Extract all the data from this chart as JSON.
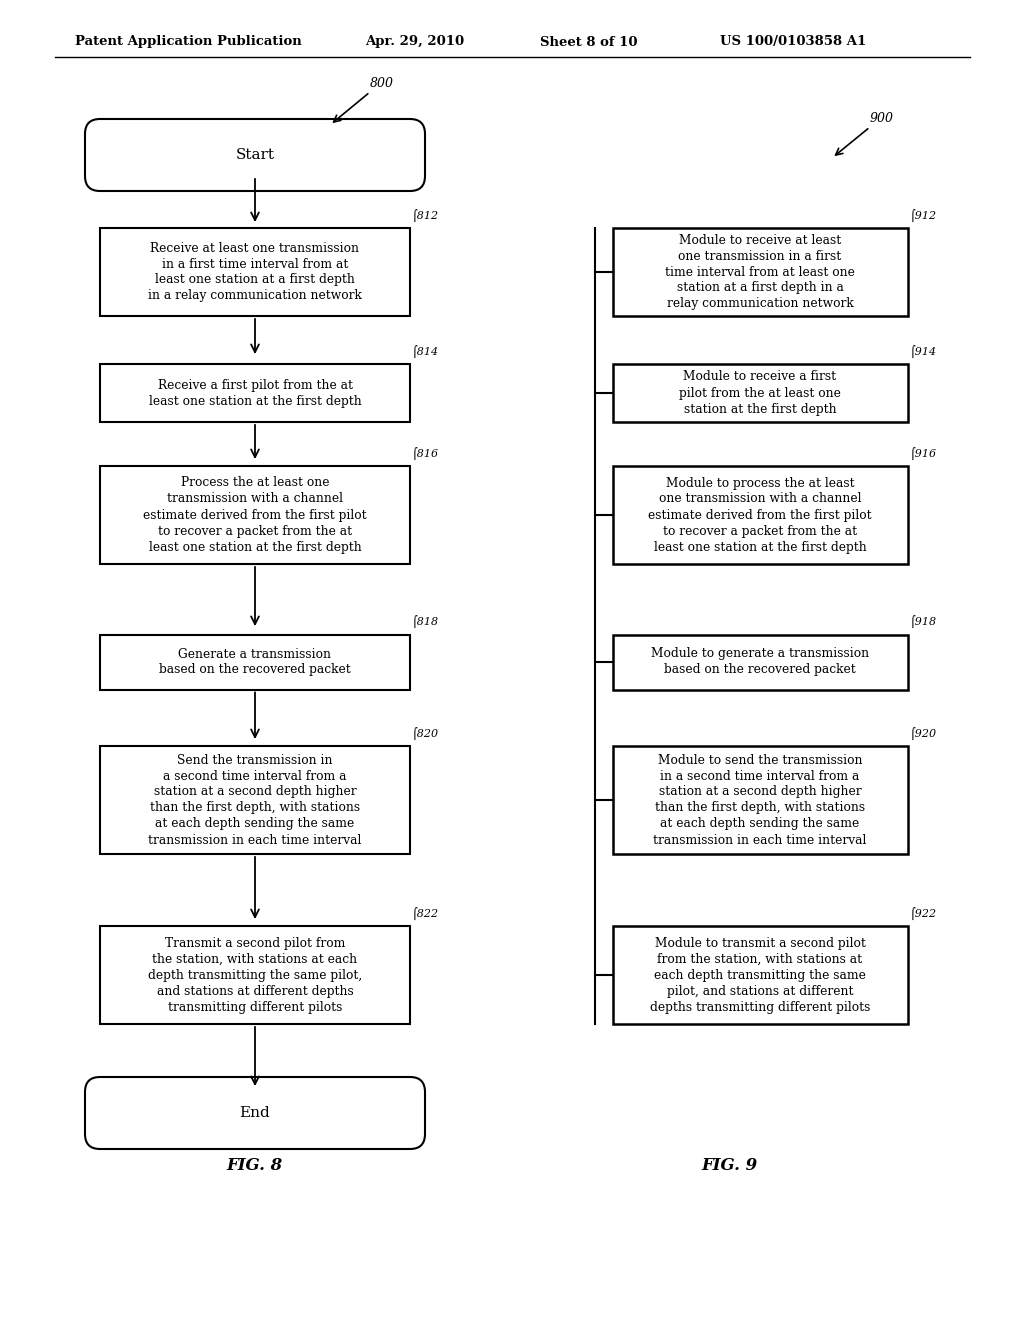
{
  "background_color": "#ffffff",
  "header_text": "Patent Application Publication",
  "header_date": "Apr. 29, 2010",
  "header_sheet": "Sheet 8 of 10",
  "header_patent": "US 100/0103858 A1",
  "fig8_label": "800",
  "fig9_label": "900",
  "fig8_caption": "FIG. 8",
  "fig9_caption": "FIG. 9",
  "left_start_text": "Start",
  "left_end_text": "End",
  "left_boxes": [
    {
      "ref": "812",
      "text": "Receive at least one transmission\nin a first time interval from at\nleast one station at a first depth\nin a relay communication network"
    },
    {
      "ref": "814",
      "text": "Receive a first pilot from the at\nleast one station at the first depth"
    },
    {
      "ref": "816",
      "text": "Process the at least one\ntransmission with a channel\nestimate derived from the first pilot\nto recover a packet from the at\nleast one station at the first depth"
    },
    {
      "ref": "818",
      "text": "Generate a transmission\nbased on the recovered packet"
    },
    {
      "ref": "820",
      "text": "Send the transmission in\na second time interval from a\nstation at a second depth higher\nthan the first depth, with stations\nat each depth sending the same\ntransmission in each time interval"
    },
    {
      "ref": "822",
      "text": "Transmit a second pilot from\nthe station, with stations at each\ndepth transmitting the same pilot,\nand stations at different depths\ntransmitting different pilots"
    }
  ],
  "right_boxes": [
    {
      "ref": "912",
      "text": "Module to receive at least\none transmission in a first\ntime interval from at least one\nstation at a first depth in a\nrelay communication network"
    },
    {
      "ref": "914",
      "text": "Module to receive a first\npilot from the at least one\nstation at the first depth"
    },
    {
      "ref": "916",
      "text": "Module to process the at least\none transmission with a channel\nestimate derived from the first pilot\nto recover a packet from the at\nleast one station at the first depth"
    },
    {
      "ref": "918",
      "text": "Module to generate a transmission\nbased on the recovered packet"
    },
    {
      "ref": "920",
      "text": "Module to send the transmission\nin a second time interval from a\nstation at a second depth higher\nthan the first depth, with stations\nat each depth sending the same\ntransmission in each time interval"
    },
    {
      "ref": "922",
      "text": "Module to transmit a second pilot\nfrom the station, with stations at\neach depth transmitting the same\npilot, and stations at different\ndepths transmitting different pilots"
    }
  ]
}
